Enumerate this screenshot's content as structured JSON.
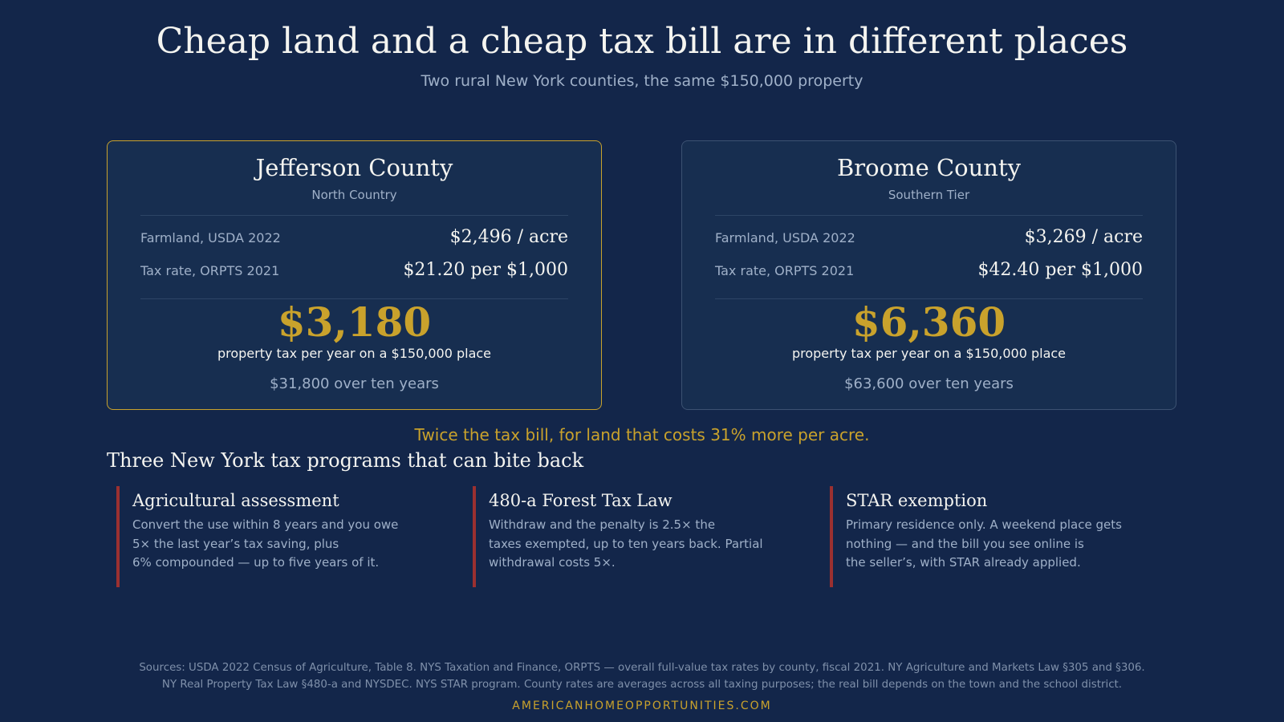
{
  "header": {
    "title": "Cheap land and a cheap tax bill are in different places",
    "subtitle": "Two rural New York counties, the same $150,000 property"
  },
  "counties": [
    {
      "name": "Jefferson County",
      "region": "North Country",
      "farmland_label": "Farmland, USDA 2022",
      "farmland_value": "$2,496 / acre",
      "tax_rate_label": "Tax rate, ORPTS 2021",
      "tax_rate_value": "$21.20 per $1,000",
      "annual_tax": "$3,180",
      "tax_caption": "property tax per year on a $150,000 place",
      "ten_year": "$31,800 over ten years",
      "highlighted": true
    },
    {
      "name": "Broome County",
      "region": "Southern Tier",
      "farmland_label": "Farmland, USDA 2022",
      "farmland_value": "$3,269 / acre",
      "tax_rate_label": "Tax rate, ORPTS 2021",
      "tax_rate_value": "$42.40 per $1,000",
      "annual_tax": "$6,360",
      "tax_caption": "property tax per year on a $150,000 place",
      "ten_year": "$63,600 over ten years",
      "highlighted": false
    }
  ],
  "callout": "Twice the tax bill, for land that costs 31% more per acre.",
  "programs_heading": "Three New York tax programs that can bite back",
  "programs": [
    {
      "title": "Agricultural assessment",
      "lines": [
        "Convert the use within 8 years and you owe",
        "5× the last year’s tax saving, plus",
        "6% compounded — up to five years of it."
      ]
    },
    {
      "title": "480-a Forest Tax Law",
      "lines": [
        "Withdraw and the penalty is 2.5× the",
        "taxes exempted, up to ten years back. Partial",
        "withdrawal costs 5×."
      ]
    },
    {
      "title": "STAR exemption",
      "lines": [
        "Primary residence only. A weekend place gets",
        "nothing — and the bill you see online is",
        "the seller’s, with STAR already applied."
      ]
    }
  ],
  "footer": {
    "sources_lines": [
      "Sources: USDA 2022 Census of Agriculture, Table 8. NYS Taxation and Finance, ORPTS — overall full-value tax rates by county, fiscal 2021. NY Agriculture and Markets Law §305 and §306.",
      "NY Real Property Tax Law §480-a and NYSDEC. NYS STAR program. County rates are averages across all taxing purposes; the real bill depends on the town and the school district."
    ],
    "site": "AMERICANHOMEOPPORTUNITIES.COM"
  },
  "colors": {
    "background": "#13264a",
    "card": "#172e50",
    "accent_gold": "#c9a22c",
    "warning_red": "#9b3030",
    "muted_text": "#9fb0c8"
  }
}
